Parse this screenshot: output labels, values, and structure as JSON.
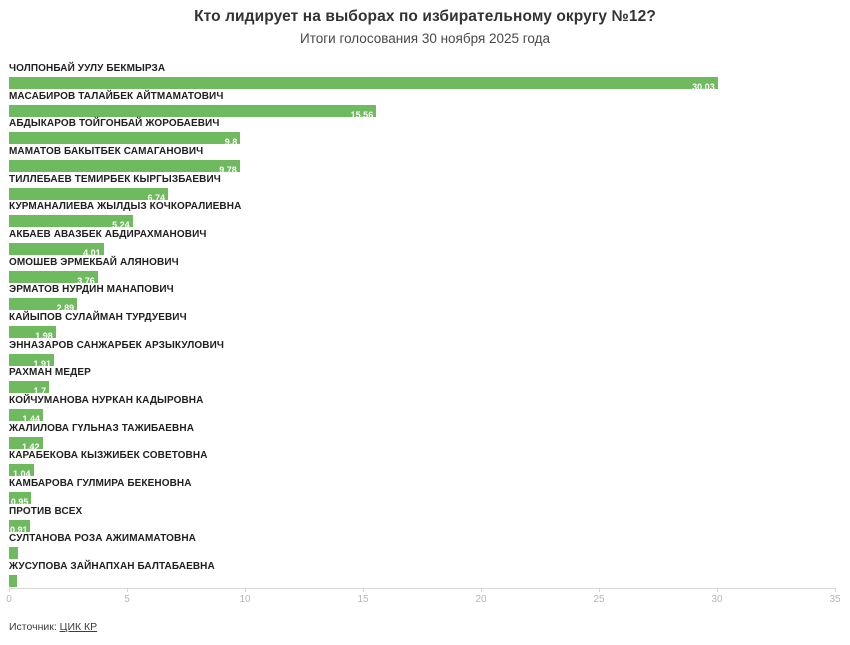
{
  "header": {
    "title": "Кто лидирует на выборах по избирательному округу №12?",
    "subtitle": "Итоги голосования 30 ноября 2025 года"
  },
  "footer": {
    "source_prefix": "Источник: ",
    "source_link_label": "ЦИК КР"
  },
  "colors": {
    "bar_fill": "#6fba5e",
    "value_label": "#ffffff",
    "category_label": "#1f1f1f",
    "title": "#333333",
    "axis_line": "#dadada",
    "tick_label": "#b6b6b6"
  },
  "chart_data": {
    "type": "bar",
    "orientation": "horizontal",
    "title": "Кто лидирует на выборах по избирательному округу №12?",
    "subtitle": "Итоги голосования 30 ноября 2025 года",
    "xlim": [
      0,
      35
    ],
    "x_ticks": [
      0,
      5,
      10,
      15,
      20,
      25,
      30,
      35
    ],
    "grid": false,
    "categories": [
      "ЧОЛПОНБАЙ УУЛУ БЕКМЫРЗА",
      "МАСАБИРОВ ТАЛАЙБЕК АЙТМАМАТОВИЧ",
      "АБДЫКАРОВ ТОЙГОНБАЙ ЖОРОБАЕВИЧ",
      "МАМАТОВ БАКЫТБЕК САМАГАНОВИЧ",
      "ТИЛЛЕБАЕВ ТЕМИРБЕК КЫРГЫЗБАЕВИЧ",
      "КУРМАНАЛИЕВА ЖЫЛДЫЗ КОЧКОРАЛИЕВНА",
      "АКБАЕВ АВАЗБЕК АБДИРАХМАНОВИЧ",
      "ОМОШЕВ ЭРМЕКБАЙ АЛЯНОВИЧ",
      "ЭРМАТОВ НУРДИН МАНАПОВИЧ",
      "КАЙЫПОВ СУЛАЙМАН ТУРДУЕВИЧ",
      "ЭННАЗАРОВ САНЖАРБЕК АРЗЫКУЛОВИЧ",
      "РАХМАН МЕДЕР",
      "КОЙЧУМАНОВА НУРКАН КАДЫРОВНА",
      "ЖАЛИЛОВА ГҮЛЬНАЗ ТАЖИБАЕВНА",
      "КАРАБЕКОВА КЫЗЖИБЕК СОВЕТОВНА",
      "КАМБАРОВА ГУЛМИРА БЕКЕНОВНА",
      "ПРОТИВ ВСЕХ",
      "СУЛТАНОВА РОЗА АЖИМАМАТОВНА",
      "ЖУСУПОВА ЗАЙНАПХАН БАЛТАБАЕВНА"
    ],
    "values": [
      30.03,
      15.56,
      9.8,
      9.78,
      6.74,
      5.24,
      4.01,
      3.76,
      2.89,
      1.98,
      1.91,
      1.7,
      1.44,
      1.42,
      1.04,
      0.95,
      0.91,
      0.4,
      0.35
    ],
    "value_labels": [
      "30,03",
      "15,56",
      "9,8",
      "9,78",
      "6,74",
      "5,24",
      "4,01",
      "3,76",
      "2,89",
      "1,98",
      "1,91",
      "1,7",
      "1,44",
      "1,42",
      "1,04",
      "0,95",
      "0,91",
      "",
      ""
    ]
  }
}
